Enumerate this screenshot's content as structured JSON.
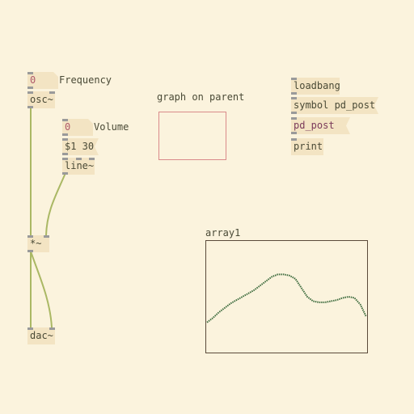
{
  "objects": {
    "freq_number": "0",
    "freq_label": "Frequency",
    "osc": "osc~",
    "vol_number": "0",
    "vol_label": "Volume",
    "vol_msg": "$1 30",
    "line": "line~",
    "multiply": "*~",
    "dac": "dac~",
    "gop_label": "graph on parent",
    "loadbang": "loadbang",
    "symbol_msg": "symbol pd_post",
    "pd_post": "pd_post",
    "print": "print"
  },
  "array": {
    "name": "array1",
    "values": [
      0.27,
      0.31,
      0.36,
      0.4,
      0.44,
      0.47,
      0.5,
      0.53,
      0.56,
      0.6,
      0.64,
      0.68,
      0.7,
      0.7,
      0.69,
      0.66,
      0.58,
      0.5,
      0.46,
      0.45,
      0.45,
      0.46,
      0.47,
      0.49,
      0.5,
      0.49,
      0.43,
      0.32
    ]
  },
  "colors": {
    "background": "#fbf3dd",
    "box": "#f3e4c3",
    "wire": "#aab864",
    "array_line": "#3d6b3d",
    "gop_border": "#d98a8a"
  }
}
